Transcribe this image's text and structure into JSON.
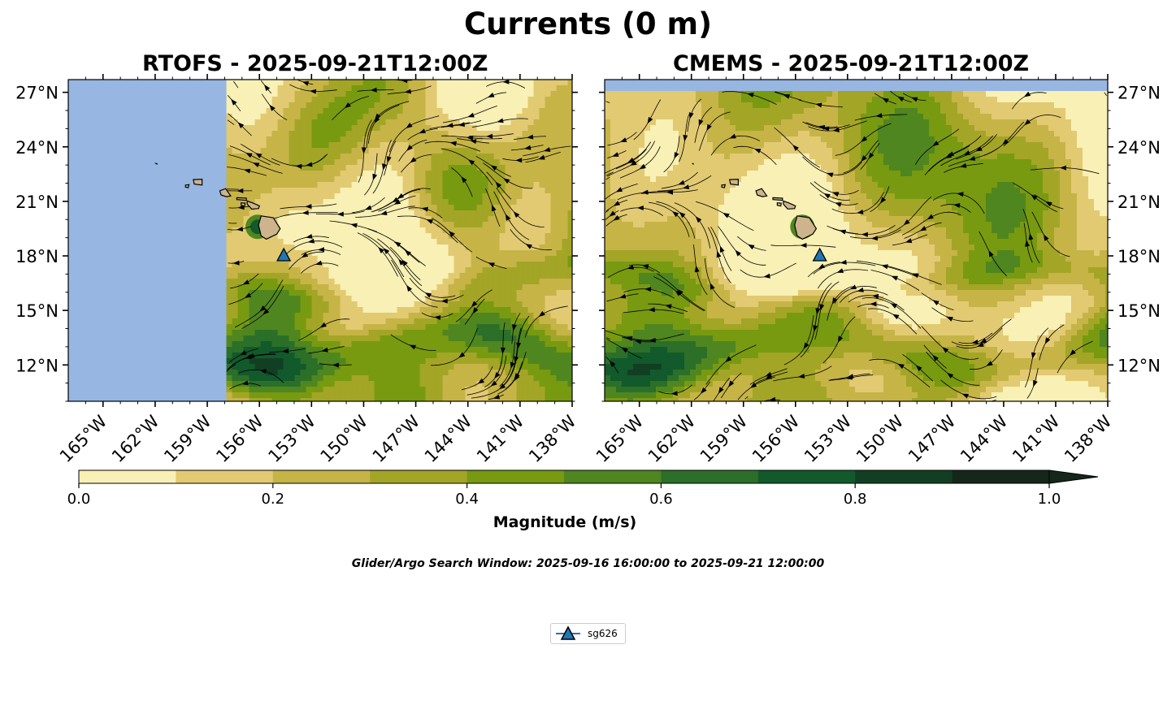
{
  "figure": {
    "title": "Currents (0 m)",
    "search_window": "Glider/Argo Search Window: 2025-09-16 16:00:00 to 2025-09-21 12:00:00"
  },
  "panels": [
    {
      "title": "RTOFS - 2025-09-21T12:00Z"
    },
    {
      "title": "CMEMS - 2025-09-21T12:00Z"
    }
  ],
  "map": {
    "lon_range": [
      -167,
      -138
    ],
    "lat_range": [
      10,
      27.7
    ],
    "lon_ticks": [
      "165°W",
      "162°W",
      "159°W",
      "156°W",
      "153°W",
      "150°W",
      "147°W",
      "144°W",
      "141°W",
      "138°W"
    ],
    "lat_ticks": [
      "27°N",
      "24°N",
      "21°N",
      "18°N",
      "15°N",
      "12°N"
    ],
    "ocean_color": "#97b6e1",
    "land_color": "#cdb48c",
    "rtofs_domain_west_edge_lon": -157.9
  },
  "colorbar": {
    "label": "Magnitude (m/s)",
    "ticks": [
      "0.0",
      "0.2",
      "0.4",
      "0.6",
      "0.8",
      "1.0"
    ],
    "levels": [
      0,
      0.1,
      0.2,
      0.3,
      0.4,
      0.5,
      0.6,
      0.7,
      0.8,
      0.9,
      1.0
    ],
    "colors": [
      "#f8f0b4",
      "#e2ca72",
      "#c6b447",
      "#a3a526",
      "#789a10",
      "#4f861f",
      "#2b6f29",
      "#125a2c",
      "#123f24",
      "#15271b"
    ],
    "extend": "max"
  },
  "glider": {
    "name": "sg626",
    "lon": -154.6,
    "lat": 18.0,
    "color": "#1f77b4"
  },
  "islands": [
    "Hawaii",
    "Maui",
    "Molokai",
    "Lanai",
    "Oahu",
    "Kauai",
    "Niihau",
    "Nihoa"
  ]
}
